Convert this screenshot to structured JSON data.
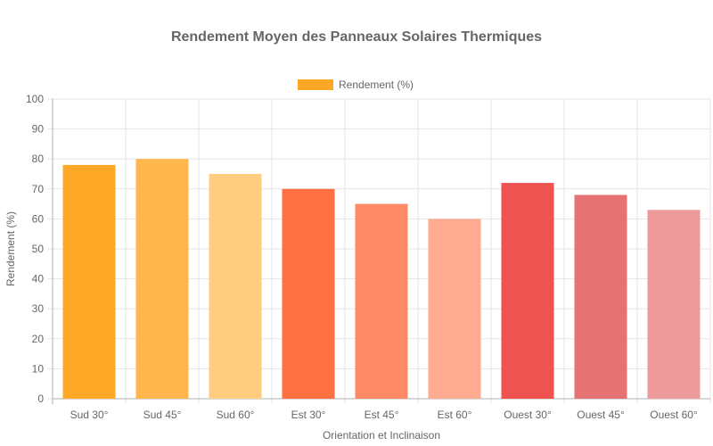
{
  "chart_data": {
    "type": "bar",
    "title": "Rendement Moyen des Panneaux Solaires Thermiques",
    "xlabel": "Orientation et Inclinaison",
    "ylabel": "Rendement (%)",
    "ylim": [
      0,
      100
    ],
    "yticks": [
      0,
      10,
      20,
      30,
      40,
      50,
      60,
      70,
      80,
      90,
      100
    ],
    "grid": true,
    "legend_position": "top",
    "categories": [
      "Sud 30°",
      "Sud 45°",
      "Sud 60°",
      "Est 30°",
      "Est 45°",
      "Est 60°",
      "Ouest 30°",
      "Ouest 45°",
      "Ouest 60°"
    ],
    "series": [
      {
        "name": "Rendement (%)",
        "values": [
          78,
          80,
          75,
          70,
          65,
          60,
          72,
          68,
          63
        ],
        "colors": [
          "#ffa726",
          "#ffb74d",
          "#ffcc80",
          "#ff7043",
          "#ff8a65",
          "#ffab91",
          "#ef5350",
          "#e57373",
          "#ef9a9a"
        ],
        "legend_color": "#ffa726"
      }
    ]
  }
}
